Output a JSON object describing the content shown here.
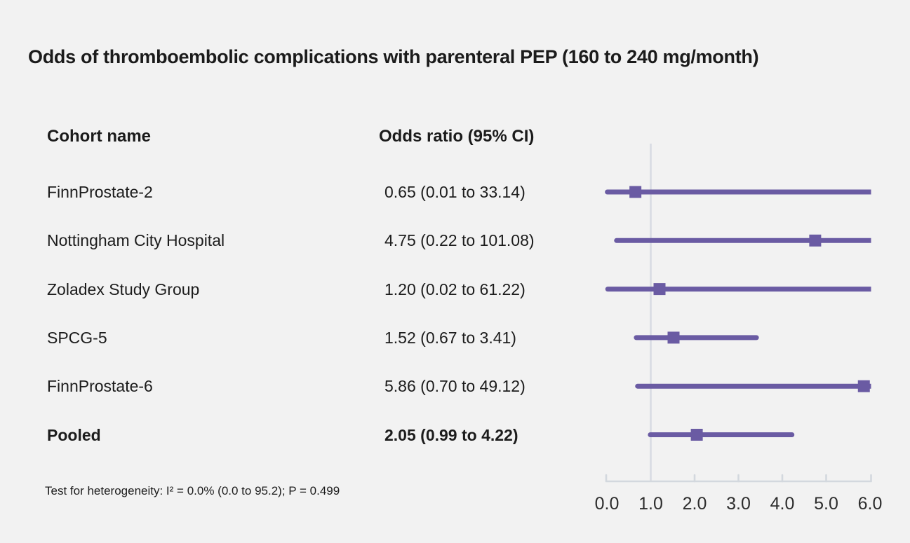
{
  "title": "Odds of thromboembolic complications with parenteral PEP (160 to 240 mg/month)",
  "columns": {
    "cohort": "Cohort name",
    "or": "Odds ratio (95% CI)"
  },
  "footnote": "Test for heterogeneity: I² = 0.0% (0.0 to 95.2); P = 0.499",
  "colors": {
    "background": "#f2f2f2",
    "text": "#1c1c1c",
    "ci_line": "#6a5ba3",
    "marker": "#6a5ba3",
    "refline": "#d8dce3",
    "axis": "#d3d8de",
    "tick_label": "#2d2d2d"
  },
  "chart_data": {
    "type": "forest",
    "title": "Odds of thromboembolic complications with parenteral PEP (160 to 240 mg/month)",
    "xlabel": "Odds ratio",
    "xlim": [
      0.0,
      6.0
    ],
    "xticks": [
      "0.0",
      "1.0",
      "2.0",
      "3.0",
      "4.0",
      "5.0",
      "6.0"
    ],
    "xtick_values": [
      0.0,
      1.0,
      2.0,
      3.0,
      4.0,
      5.0,
      6.0
    ],
    "refline_x": 1.0,
    "grid": false,
    "legend": "none",
    "rows": [
      {
        "label": "FinnProstate-2",
        "display": "0.65 (0.01 to 33.14)",
        "or": 0.65,
        "lo": 0.01,
        "hi": 33.14,
        "bold": false
      },
      {
        "label": "Nottingham City Hospital",
        "display": "4.75 (0.22 to 101.08)",
        "or": 4.75,
        "lo": 0.22,
        "hi": 101.08,
        "bold": false
      },
      {
        "label": "Zoladex Study Group",
        "display": "1.20 (0.02 to 61.22)",
        "or": 1.2,
        "lo": 0.02,
        "hi": 61.22,
        "bold": false
      },
      {
        "label": "SPCG-5",
        "display": "1.52 (0.67 to 3.41)",
        "or": 1.52,
        "lo": 0.67,
        "hi": 3.41,
        "bold": false
      },
      {
        "label": "FinnProstate-6",
        "display": "5.86 (0.70 to 49.12)",
        "or": 5.86,
        "lo": 0.7,
        "hi": 49.12,
        "bold": false
      },
      {
        "label": "Pooled",
        "display": "2.05 (0.99 to 4.22)",
        "or": 2.05,
        "lo": 0.99,
        "hi": 4.22,
        "bold": true
      }
    ]
  }
}
